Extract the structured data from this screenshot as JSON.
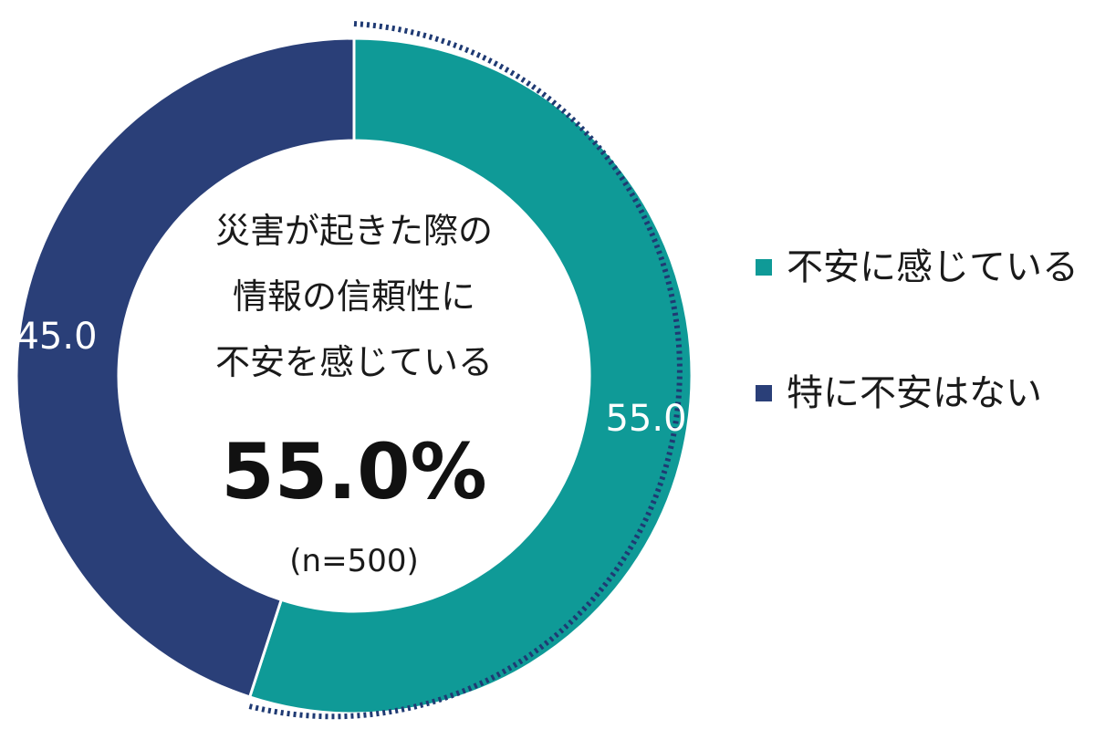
{
  "chart_data": {
    "type": "pie",
    "donut": true,
    "categories": [
      "不安に感じている",
      "特に不安はない"
    ],
    "values": [
      55.0,
      45.0
    ],
    "slice_labels": [
      "55.0",
      "45.0"
    ],
    "colors": [
      "#0f9a97",
      "#2a3f78"
    ],
    "highlight": {
      "category": "不安に感じている",
      "outline": "dotted",
      "outline_color": "#1f3a73"
    },
    "center_text": {
      "lines": [
        "災害が起きた際の",
        "情報の信頼性に",
        "不安を感じている"
      ],
      "percent": "55.0%",
      "n": "(n=500)"
    },
    "legend": {
      "placement": "right",
      "items": [
        {
          "label": "不安に感じている",
          "color": "#0f9a97"
        },
        {
          "label": "特に不安はない",
          "color": "#2a3f78"
        }
      ]
    }
  }
}
